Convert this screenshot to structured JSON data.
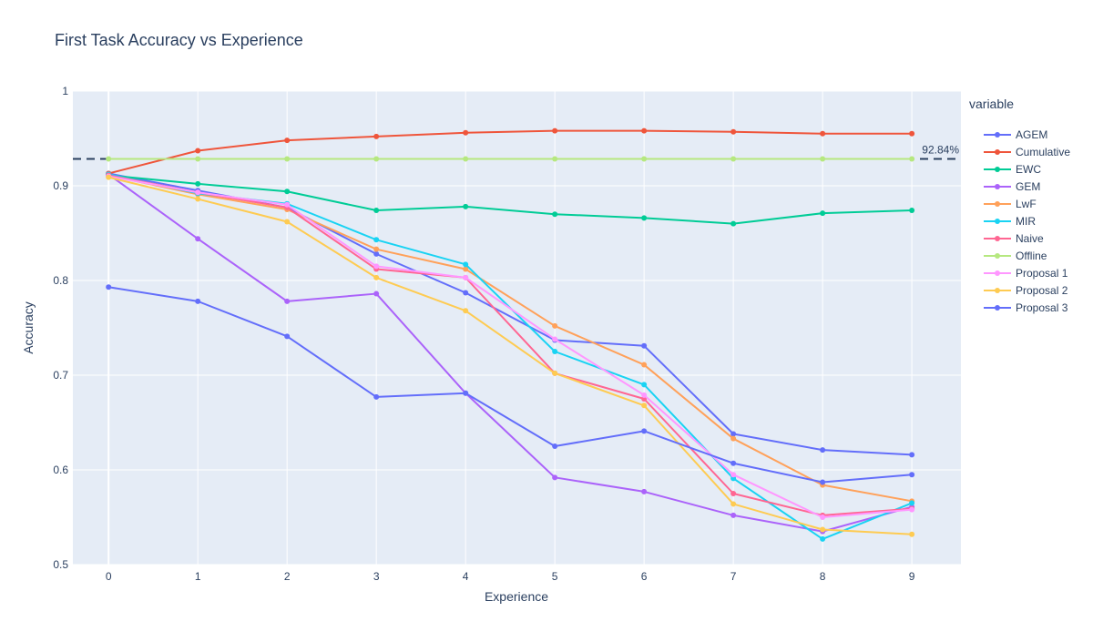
{
  "chart_data": {
    "type": "line",
    "title": "First Task Accuracy vs Experience",
    "xlabel": "Experience",
    "ylabel": "Accuracy",
    "x": [
      0,
      1,
      2,
      3,
      4,
      5,
      6,
      7,
      8,
      9
    ],
    "xticks": [
      "0",
      "1",
      "2",
      "3",
      "4",
      "5",
      "6",
      "7",
      "8",
      "9"
    ],
    "xlim": [
      -0.4,
      9.55
    ],
    "ylim": [
      0.5,
      1.0
    ],
    "yticks": [
      0.5,
      0.6,
      0.7,
      0.8,
      0.9,
      1.0
    ],
    "ytick_labels": [
      "0.5",
      "0.6",
      "0.7",
      "0.8",
      "0.9",
      "1"
    ],
    "grid": true,
    "legend_title": "variable",
    "legend_position": "right",
    "series": [
      {
        "name": "AGEM",
        "color": "#636efa",
        "values": [
          0.913,
          0.895,
          0.877,
          0.828,
          0.787,
          0.737,
          0.731,
          0.638,
          0.621,
          0.616
        ]
      },
      {
        "name": "Cumulative",
        "color": "#ef553b",
        "values": [
          0.913,
          0.937,
          0.948,
          0.952,
          0.956,
          0.958,
          0.958,
          0.957,
          0.955,
          0.955
        ]
      },
      {
        "name": "EWC",
        "color": "#00cc96",
        "values": [
          0.911,
          0.902,
          0.894,
          0.874,
          0.878,
          0.87,
          0.866,
          0.86,
          0.871,
          0.874
        ]
      },
      {
        "name": "GEM",
        "color": "#ab63fa",
        "values": [
          0.912,
          0.844,
          0.778,
          0.786,
          0.681,
          0.592,
          0.577,
          0.552,
          0.535,
          0.561
        ]
      },
      {
        "name": "LwF",
        "color": "#ffa15a",
        "values": [
          0.911,
          0.891,
          0.875,
          0.833,
          0.812,
          0.752,
          0.711,
          0.633,
          0.584,
          0.567
        ]
      },
      {
        "name": "MIR",
        "color": "#19d3f3",
        "values": [
          0.912,
          0.892,
          0.881,
          0.843,
          0.817,
          0.725,
          0.69,
          0.591,
          0.527,
          0.565
        ]
      },
      {
        "name": "Naive",
        "color": "#ff6692",
        "values": [
          0.911,
          0.893,
          0.877,
          0.812,
          0.803,
          0.702,
          0.675,
          0.575,
          0.552,
          0.559
        ]
      },
      {
        "name": "Offline",
        "color": "#b6e880",
        "values": [
          0.9284,
          0.9284,
          0.9284,
          0.9284,
          0.9284,
          0.9284,
          0.9284,
          0.9284,
          0.9284,
          0.9284
        ]
      },
      {
        "name": "Proposal 1",
        "color": "#ff97ff",
        "values": [
          0.91,
          0.893,
          0.88,
          0.815,
          0.803,
          0.738,
          0.679,
          0.595,
          0.55,
          0.558
        ]
      },
      {
        "name": "Proposal 2",
        "color": "#fecb52",
        "values": [
          0.909,
          0.886,
          0.862,
          0.803,
          0.768,
          0.702,
          0.668,
          0.564,
          0.537,
          0.532
        ]
      },
      {
        "name": "Proposal 3",
        "color": "#636efa",
        "values": [
          0.793,
          0.778,
          0.741,
          0.677,
          0.681,
          0.625,
          0.641,
          0.607,
          0.587,
          0.595
        ]
      }
    ],
    "reference_line": {
      "value": 0.9284,
      "label": "92.84%",
      "color": "#2a3f5f",
      "style": "dashed"
    }
  }
}
